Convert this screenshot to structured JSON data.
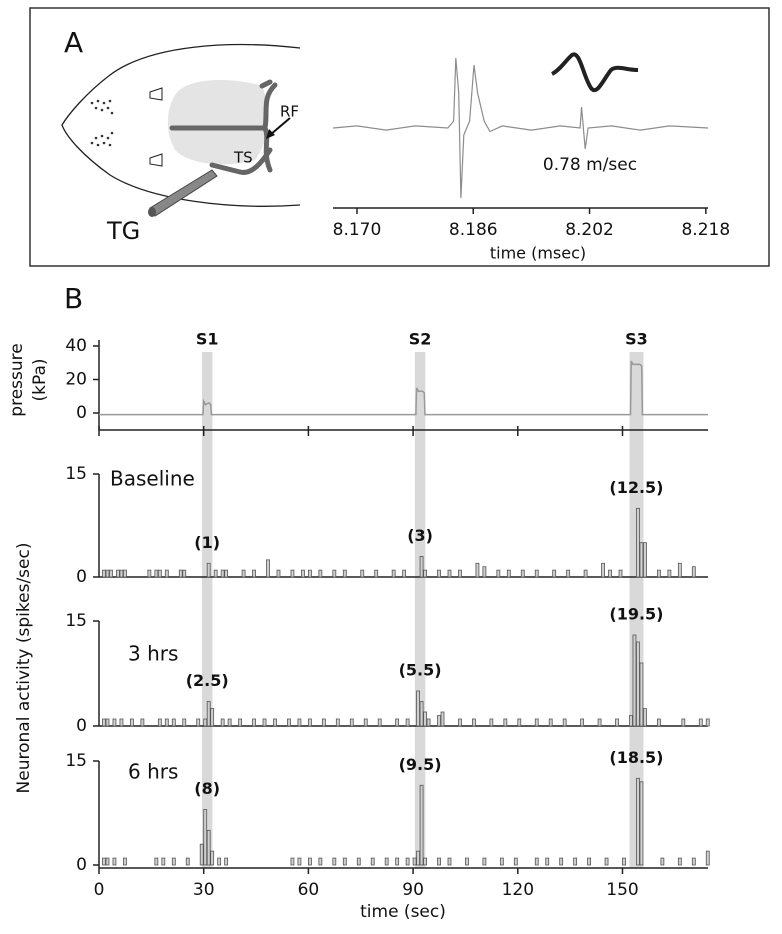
{
  "panel_a": {
    "label": "A",
    "rf": "RF",
    "ts": "TS",
    "tg": "TG"
  },
  "panel_b": {
    "label": "B",
    "y_label": "Neuronal activity (spikes/sec)"
  },
  "chart_data": [
    {
      "type": "line",
      "color": "#8c8c8c",
      "x": [
        8.1667,
        8.17,
        8.174,
        8.178,
        8.1825,
        8.1833,
        8.1836,
        8.184,
        8.1843,
        8.1847,
        8.1855,
        8.1861,
        8.1866,
        8.1875,
        8.1883,
        8.19,
        8.194,
        8.198,
        8.2007,
        8.2009,
        8.2014,
        8.2018,
        8.205,
        8.209,
        8.213,
        8.2183
      ],
      "values": [
        0,
        0.03,
        -0.03,
        0.03,
        0,
        0.1,
        1,
        0.5,
        -1,
        -0.1,
        0.1,
        0.9,
        0.5,
        0.1,
        -0.05,
        0.03,
        -0.03,
        0.03,
        0,
        0.3,
        -0.3,
        0,
        0.03,
        -0.03,
        0.03,
        0
      ],
      "xlim": [
        8.1667,
        8.2183
      ],
      "ylim": [
        -1,
        1
      ],
      "xticks": [
        {
          "value": 8.17,
          "label": "8.170"
        },
        8.186,
        8.202,
        8.218
      ],
      "x_label": "time (msec)",
      "annotation": "0.78 m/sec"
    },
    {
      "type": "line",
      "color": "#999999",
      "x": [
        0,
        29.8,
        30,
        30.5,
        31.5,
        32,
        32.2,
        90.8,
        91,
        91.5,
        92.7,
        93.2,
        93.4,
        152.3,
        152.5,
        153,
        155,
        155.5,
        155.7,
        174.5
      ],
      "values": [
        -1,
        -1,
        7,
        5,
        6,
        5,
        -1,
        -1,
        15,
        13,
        13,
        12,
        -1,
        -1,
        31,
        29,
        29,
        28,
        -1,
        -1
      ],
      "xlim": [
        0,
        174.5
      ],
      "ylim": [
        -10,
        45
      ],
      "yticks": [
        0,
        20,
        40
      ],
      "xticks": [
        0,
        30,
        60,
        90,
        120,
        150
      ],
      "y_label": [
        "pressure",
        "(kPa)"
      ],
      "stimuli": [
        {
          "label": "S1",
          "start": 29.5,
          "end": 32.5
        },
        {
          "label": "S2",
          "start": 90.5,
          "end": 93.5
        },
        {
          "label": "S3",
          "start": 152,
          "end": 156
        }
      ]
    },
    {
      "type": "bar",
      "title": "Baseline",
      "color": "#555555",
      "x": [
        1,
        2,
        3,
        5,
        6,
        7,
        14,
        16,
        17,
        19,
        23,
        24,
        31,
        33,
        35,
        36,
        41,
        44,
        48,
        51,
        55,
        58,
        60,
        63,
        67,
        70,
        75,
        79,
        84,
        87,
        92,
        93,
        97,
        100,
        103,
        108,
        110,
        114,
        117,
        121,
        125,
        130,
        134,
        139,
        144,
        146,
        149,
        154,
        155,
        156,
        160,
        163,
        166,
        170
      ],
      "values": [
        1,
        1,
        1,
        1,
        1,
        1,
        1,
        1,
        1,
        1,
        1,
        1,
        2,
        1,
        1,
        1,
        1,
        1,
        2.5,
        1,
        1,
        1,
        1,
        1,
        1,
        1,
        1,
        1,
        1,
        1,
        3,
        1,
        1,
        1,
        1,
        2,
        1.5,
        1,
        1,
        1,
        1,
        1,
        1,
        1,
        2,
        1,
        1,
        10,
        5,
        5,
        1,
        1,
        2,
        1.5
      ],
      "xlim": [
        0,
        174.5
      ],
      "ylim": [
        0,
        15
      ],
      "yticks": [
        0,
        15
      ],
      "annotations": [
        "(1)",
        "(3)",
        "(12.5)"
      ]
    },
    {
      "type": "bar",
      "title": "3 hrs",
      "color": "#555555",
      "x": [
        1,
        2,
        4,
        6,
        9,
        12,
        17,
        19,
        21,
        24,
        28,
        30,
        31,
        32,
        35,
        37,
        40,
        44,
        47,
        50,
        54,
        57,
        60,
        64,
        68,
        72,
        76,
        80,
        85,
        88,
        91,
        92,
        93,
        94,
        97,
        98,
        103,
        107,
        112,
        116,
        120,
        125,
        129,
        133,
        138,
        143,
        148,
        152,
        153,
        154,
        155,
        156,
        160,
        167,
        172,
        174
      ],
      "values": [
        1,
        1,
        1,
        1,
        1,
        1,
        1,
        1,
        1,
        1,
        1,
        1,
        3.5,
        2.5,
        1,
        1,
        1,
        1,
        1,
        1,
        1,
        1,
        1,
        1,
        1,
        1,
        1,
        1,
        1,
        1,
        5,
        3.5,
        2,
        1,
        1.5,
        2,
        1,
        1,
        1,
        1,
        1,
        1,
        1,
        1,
        1,
        1,
        1,
        1.5,
        13,
        12,
        9,
        2.5,
        1,
        1,
        1,
        1
      ],
      "xlim": [
        0,
        174.5
      ],
      "ylim": [
        0,
        15
      ],
      "yticks": [
        0,
        15
      ],
      "annotations": [
        "(2.5)",
        "(5.5)",
        "(19.5)"
      ]
    },
    {
      "type": "bar",
      "title": "6 hrs",
      "color": "#555555",
      "x": [
        1,
        2,
        4,
        7,
        16,
        18,
        21,
        25,
        29,
        30,
        31,
        32,
        34,
        36,
        55,
        57,
        60,
        63,
        67,
        70,
        74,
        78,
        82,
        85,
        88,
        90,
        91,
        92,
        93,
        97,
        100,
        105,
        110,
        115,
        119,
        125,
        128,
        132,
        136,
        140,
        145,
        150,
        154,
        155,
        161,
        166,
        170,
        174
      ],
      "values": [
        1,
        1,
        1,
        1,
        1,
        1,
        1,
        1,
        3,
        8,
        5,
        2,
        1,
        1,
        1,
        1,
        1,
        1,
        1,
        1,
        1,
        1,
        1,
        1,
        1,
        1,
        2,
        11.5,
        1,
        1,
        1,
        1,
        1,
        1,
        1,
        1,
        1,
        1,
        1,
        1,
        1,
        1,
        12.5,
        12,
        1,
        1,
        1,
        2
      ],
      "xlim": [
        0,
        174.5
      ],
      "ylim": [
        0,
        15
      ],
      "yticks": [
        0,
        15
      ],
      "xticks": [
        0,
        30,
        60,
        90,
        120,
        150
      ],
      "x_label": "time (sec)",
      "annotations": [
        "(8)",
        "(9.5)",
        "(18.5)"
      ]
    }
  ]
}
